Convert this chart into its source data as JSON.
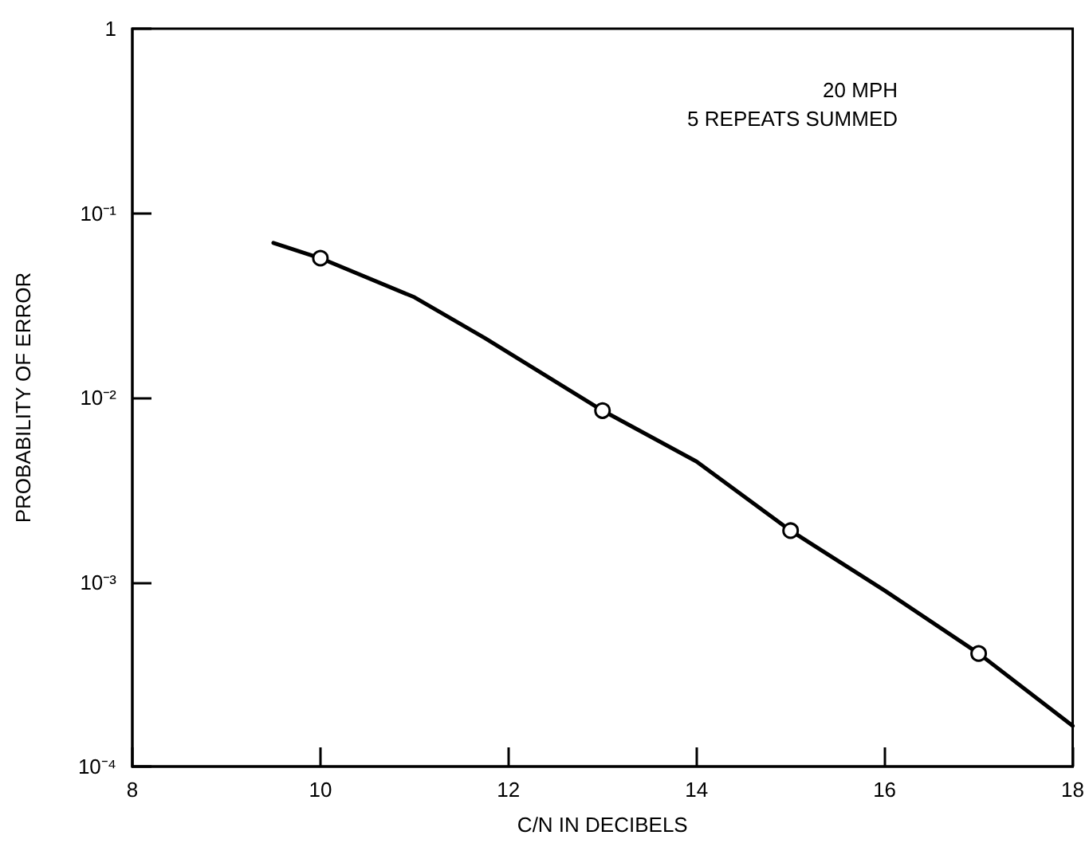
{
  "chart_data": {
    "type": "line",
    "xlabel": "C/N IN DECIBELS",
    "ylabel": "PROBABILITY OF ERROR",
    "annotations": [
      "20 MPH",
      "5 REPEATS SUMMED"
    ],
    "log": "y",
    "grid": false,
    "xlim": [
      8,
      18
    ],
    "xticks": [
      8,
      10,
      12,
      14,
      16,
      18
    ],
    "ylim": [
      0.0001,
      1
    ],
    "yticks": [
      1,
      {
        "value": 0.1,
        "label": "10⁻¹"
      },
      {
        "value": 0.01,
        "label": "10⁻²"
      },
      {
        "value": 0.001,
        "label": "10⁻³"
      },
      {
        "value": 0.0001,
        "label": "10⁻⁴"
      }
    ],
    "series": [
      {
        "color": "#000000",
        "marker": "none",
        "line_style": "solid",
        "x": [
          9.5,
          10,
          11,
          11.75,
          13,
          14,
          15,
          16,
          17,
          18
        ],
        "values": [
          0.069,
          0.057,
          0.035,
          0.021,
          0.0085,
          0.0045,
          0.0019,
          0.0009,
          0.00041,
          0.000166
        ]
      },
      {
        "type": "scatter",
        "color": "#000000",
        "marker": "circle",
        "x": [
          10,
          13,
          15,
          17
        ],
        "values": [
          0.057,
          0.0085,
          0.0019,
          0.00041
        ]
      }
    ]
  }
}
